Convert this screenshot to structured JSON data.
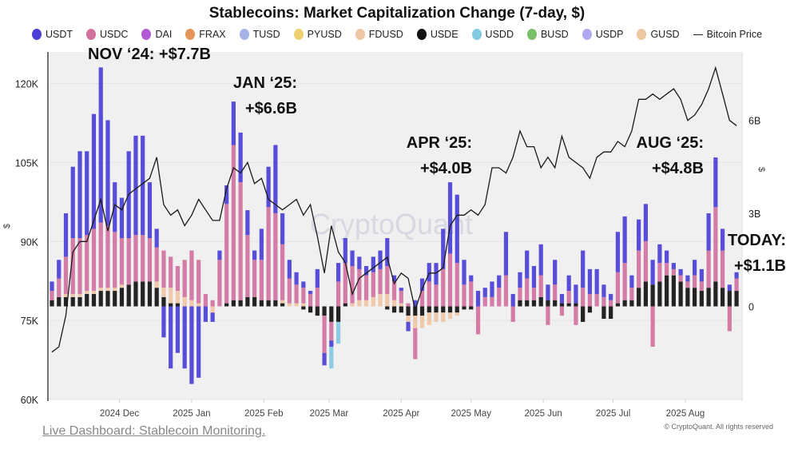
{
  "chart_data": {
    "type": "bar",
    "title": "Stablecoins: Market Capitalization Change (7-day, $)",
    "left_axis": {
      "label": "$",
      "ticks": [
        "60K",
        "75K",
        "90K",
        "105K",
        "120K"
      ],
      "range": [
        60000,
        126000
      ],
      "series": "Bitcoin Price"
    },
    "right_axis": {
      "label": "$",
      "ticks": [
        "0",
        "3B",
        "6B"
      ],
      "range_billions": [
        -3.0,
        8.2
      ]
    },
    "x_ticks": [
      "2024 Dec",
      "2025 Jan",
      "2025 Feb",
      "2025 Mar",
      "2025 Apr",
      "2025 May",
      "2025 Jun",
      "2025 Jul",
      "2025 Aug"
    ],
    "x_tick_dates": [
      "2024-12-01",
      "2025-01-01",
      "2025-02-01",
      "2025-03-01",
      "2025-04-01",
      "2025-05-01",
      "2025-06-01",
      "2025-07-01",
      "2025-08-01"
    ],
    "x_range": [
      "2024-11-02",
      "2025-08-24"
    ],
    "grid": true,
    "legend_position": "top",
    "legend": [
      {
        "name": "USDT",
        "color": "#4b3fd6"
      },
      {
        "name": "USDC",
        "color": "#d1729e"
      },
      {
        "name": "DAI",
        "color": "#b25ad6"
      },
      {
        "name": "FRAX",
        "color": "#e5955a"
      },
      {
        "name": "TUSD",
        "color": "#a6b2e6"
      },
      {
        "name": "PYUSD",
        "color": "#efd172"
      },
      {
        "name": "FDUSD",
        "color": "#efc6a4"
      },
      {
        "name": "USDE",
        "color": "#111111"
      },
      {
        "name": "USDD",
        "color": "#82c9e2"
      },
      {
        "name": "BUSD",
        "color": "#7cbf6a"
      },
      {
        "name": "USDP",
        "color": "#b1a9ef"
      },
      {
        "name": "GUSD",
        "color": "#eec6a0"
      }
    ],
    "line_legend": "Bitcoin Price",
    "dates": [
      "2024-11-02",
      "2024-11-05",
      "2024-11-08",
      "2024-11-11",
      "2024-11-14",
      "2024-11-17",
      "2024-11-20",
      "2024-11-23",
      "2024-11-26",
      "2024-11-29",
      "2024-12-02",
      "2024-12-05",
      "2024-12-08",
      "2024-12-11",
      "2024-12-14",
      "2024-12-17",
      "2024-12-20",
      "2024-12-23",
      "2024-12-26",
      "2024-12-29",
      "2025-01-01",
      "2025-01-04",
      "2025-01-07",
      "2025-01-10",
      "2025-01-13",
      "2025-01-16",
      "2025-01-19",
      "2025-01-22",
      "2025-01-25",
      "2025-01-28",
      "2025-01-31",
      "2025-02-03",
      "2025-02-06",
      "2025-02-09",
      "2025-02-12",
      "2025-02-15",
      "2025-02-18",
      "2025-02-21",
      "2025-02-24",
      "2025-02-27",
      "2025-03-02",
      "2025-03-05",
      "2025-03-08",
      "2025-03-11",
      "2025-03-14",
      "2025-03-17",
      "2025-03-20",
      "2025-03-23",
      "2025-03-26",
      "2025-03-29",
      "2025-04-01",
      "2025-04-04",
      "2025-04-07",
      "2025-04-10",
      "2025-04-13",
      "2025-04-16",
      "2025-04-19",
      "2025-04-22",
      "2025-04-25",
      "2025-04-28",
      "2025-05-01",
      "2025-05-04",
      "2025-05-07",
      "2025-05-10",
      "2025-05-13",
      "2025-05-16",
      "2025-05-19",
      "2025-05-22",
      "2025-05-25",
      "2025-05-28",
      "2025-05-31",
      "2025-06-03",
      "2025-06-06",
      "2025-06-09",
      "2025-06-12",
      "2025-06-15",
      "2025-06-18",
      "2025-06-21",
      "2025-06-24",
      "2025-06-27",
      "2025-06-30",
      "2025-07-03",
      "2025-07-06",
      "2025-07-09",
      "2025-07-12",
      "2025-07-15",
      "2025-07-18",
      "2025-07-21",
      "2025-07-24",
      "2025-07-27",
      "2025-07-30",
      "2025-08-02",
      "2025-08-05",
      "2025-08-08",
      "2025-08-11",
      "2025-08-14",
      "2025-08-17",
      "2025-08-20",
      "2025-08-23"
    ],
    "series": [
      {
        "name": "USDE",
        "values_billions": [
          0.2,
          0.3,
          0.3,
          0.3,
          0.3,
          0.4,
          0.4,
          0.5,
          0.5,
          0.5,
          0.6,
          0.7,
          0.8,
          0.8,
          0.8,
          0.6,
          0.3,
          0.1,
          0.1,
          0,
          0,
          0,
          0,
          0,
          0,
          0.1,
          0.2,
          0.2,
          0.3,
          0.3,
          0.2,
          0.2,
          0.2,
          0.1,
          0,
          0,
          -0.1,
          -0.2,
          -0.3,
          -0.3,
          -0.5,
          -0.5,
          0.1,
          0,
          0,
          0,
          0,
          0,
          -0.1,
          -0.2,
          -0.2,
          -0.3,
          -0.3,
          -0.3,
          -0.2,
          -0.2,
          -0.2,
          -0.2,
          -0.2,
          -0.1,
          -0.1,
          0,
          0,
          0,
          0,
          0,
          0,
          0.2,
          0.2,
          0.2,
          0.3,
          0.2,
          0.2,
          0.1,
          0.1,
          0.1,
          -0.5,
          -0.2,
          0,
          -0.4,
          -0.4,
          0.1,
          0.2,
          0.2,
          0.6,
          0.8,
          0.7,
          0.8,
          1.0,
          1.0,
          0.8,
          0.6,
          0.6,
          0.5,
          0.6,
          0.8,
          0.6,
          0.5,
          0.5
        ]
      },
      {
        "name": "FDUSD",
        "values_billions": [
          0,
          0,
          0.1,
          0.1,
          0.1,
          0.1,
          0.1,
          0.1,
          0.1,
          0.1,
          0.1,
          0,
          0,
          0,
          0,
          0.2,
          0.3,
          0.5,
          0.4,
          0.3,
          0.2,
          0.1,
          0,
          -0.2,
          0,
          0,
          0,
          0,
          0,
          0,
          0,
          0,
          0,
          0.1,
          0.1,
          0.1,
          0.1,
          0,
          0,
          0,
          0,
          0,
          0,
          0.1,
          0.2,
          0.2,
          0.3,
          0.4,
          0.4,
          0.2,
          0.1,
          -0.2,
          -0.4,
          -0.4,
          -0.4,
          -0.3,
          -0.3,
          -0.2,
          -0.1,
          0,
          0,
          0,
          0,
          0,
          0,
          0,
          0,
          0,
          0,
          0,
          0,
          0,
          0,
          0,
          0,
          0,
          0,
          0,
          0,
          0,
          0,
          0,
          0,
          0,
          0,
          0,
          0,
          0,
          0,
          0,
          0,
          0,
          0,
          0,
          0,
          0,
          0,
          0,
          0
        ]
      },
      {
        "name": "USDC",
        "values_billions": [
          0.3,
          0.6,
          1.2,
          1.8,
          1.8,
          1.8,
          2.0,
          2.1,
          2.0,
          1.8,
          1.5,
          1.5,
          1.5,
          1.5,
          1.4,
          1.1,
          1.2,
          1.0,
          0.8,
          1.2,
          1.6,
          1.4,
          0.4,
          0.2,
          1.5,
          3.2,
          5.0,
          3.8,
          2.0,
          1.2,
          1.3,
          3.0,
          2.8,
          1.8,
          0.8,
          0.6,
          0.5,
          0.4,
          0.6,
          -1.2,
          -0.6,
          0.8,
          1.3,
          1.2,
          1.0,
          0.8,
          0.8,
          0.8,
          0.9,
          0.6,
          0.4,
          0.1,
          -1.0,
          0.5,
          0.8,
          0.7,
          1.2,
          1.7,
          1.4,
          0.7,
          0.8,
          -0.9,
          0.3,
          0.3,
          0.6,
          1.0,
          -0.5,
          0.4,
          0.7,
          0.4,
          0.7,
          -0.6,
          0.5,
          -0.3,
          0.4,
          -0.6,
          0.6,
          0.4,
          0.4,
          0.3,
          0.2,
          1.0,
          1.2,
          0.4,
          1.2,
          1.3,
          -1.3,
          0.6,
          0.4,
          0.2,
          0.2,
          0.2,
          0.4,
          0.3,
          1.2,
          2.4,
          1.2,
          -0.8,
          0.4
        ]
      },
      {
        "name": "USDT",
        "values_billions": [
          0.3,
          0.6,
          1.4,
          2.3,
          2.8,
          2.7,
          3.7,
          5.0,
          3.4,
          1.6,
          1.3,
          2.8,
          3.2,
          3.2,
          1.8,
          0.6,
          -1.0,
          -2.0,
          -1.5,
          -2.0,
          -2.5,
          -2.3,
          -0.5,
          -0.3,
          0.3,
          0.6,
          1.4,
          1.6,
          0.8,
          0.3,
          1.0,
          1.3,
          2.2,
          1.0,
          0.6,
          0.4,
          0.2,
          0.1,
          0.6,
          -0.4,
          -0.2,
          0.6,
          0.8,
          0.5,
          0.4,
          0.3,
          0.5,
          0.6,
          0.9,
          0.2,
          0.1,
          -0.3,
          0.2,
          0.4,
          0.6,
          0.7,
          1.3,
          2.3,
          2.2,
          0.8,
          0.2,
          0.5,
          0.3,
          0.5,
          0.4,
          1.4,
          0.4,
          0.5,
          0.9,
          0.7,
          1.0,
          0.5,
          0.8,
          0.3,
          0.5,
          0.6,
          1.2,
          0.8,
          0.8,
          0.4,
          0.2,
          1.3,
          1.5,
          0.4,
          1.0,
          1.2,
          0.8,
          0.6,
          0.4,
          0.2,
          0.2,
          0.2,
          0.5,
          0.4,
          1.2,
          1.6,
          0.7,
          0.2,
          0.2
        ]
      },
      {
        "name": "USDD",
        "values_billions": [
          0,
          0,
          0,
          0,
          0,
          0,
          0,
          0,
          0,
          0,
          0,
          0,
          0,
          0,
          0,
          0,
          0,
          0,
          0,
          0,
          0,
          0,
          0,
          0,
          0,
          0,
          0,
          0,
          0,
          0,
          0,
          0,
          0,
          0,
          0,
          0,
          0,
          0,
          0,
          0,
          -0.7,
          -0.7,
          0,
          0,
          0,
          0,
          0,
          0,
          0,
          0,
          0,
          0,
          0,
          0,
          0,
          0,
          0,
          0,
          0,
          0,
          0,
          0,
          0,
          0,
          0,
          0,
          0,
          0,
          0,
          0,
          0,
          0,
          0,
          0,
          0,
          0,
          0,
          0,
          0,
          0,
          0,
          0,
          0,
          0,
          0,
          0,
          0,
          0,
          0,
          0,
          0,
          0,
          0,
          0,
          0,
          0,
          0,
          0,
          0
        ]
      }
    ],
    "bitcoin_price_usd": [
      69000,
      70000,
      76000,
      88000,
      90000,
      90000,
      94000,
      98000,
      92000,
      97000,
      96000,
      99000,
      100000,
      101000,
      102000,
      106000,
      97000,
      95000,
      96000,
      93000,
      95000,
      98000,
      96000,
      94000,
      94000,
      100000,
      104000,
      103000,
      105000,
      101000,
      102000,
      98000,
      97000,
      96000,
      97000,
      98000,
      95000,
      97000,
      91000,
      84000,
      93000,
      88000,
      86000,
      80000,
      83000,
      84000,
      85000,
      86000,
      87000,
      82000,
      84000,
      83000,
      77000,
      81000,
      84000,
      84000,
      85000,
      93000,
      95000,
      95000,
      96000,
      95000,
      97000,
      104000,
      104000,
      103000,
      106000,
      111000,
      108000,
      108000,
      104000,
      106000,
      104000,
      110000,
      106000,
      105000,
      104000,
      102000,
      106000,
      107000,
      107000,
      109000,
      108000,
      111000,
      117000,
      117000,
      118000,
      117000,
      118000,
      119000,
      117000,
      113000,
      114000,
      116000,
      119000,
      123000,
      118000,
      113000,
      112000
    ],
    "annotations": [
      {
        "lines": [
          "NOV ‘24: +$7.7B"
        ]
      },
      {
        "lines": [
          "JAN ‘25:",
          "+$6.6B"
        ]
      },
      {
        "lines": [
          "APR ‘25:",
          "+$4.0B"
        ]
      },
      {
        "lines": [
          "AUG ‘25:",
          "+$4.8B"
        ]
      },
      {
        "lines": [
          "TODAY:",
          "+$1.1B"
        ]
      }
    ],
    "watermark": "CryptoQuant"
  },
  "footer": {
    "link_text": "Live Dashboard: Stablecoin Monitoring.",
    "copyright": "© CryptoQuant. All rights reserved"
  }
}
